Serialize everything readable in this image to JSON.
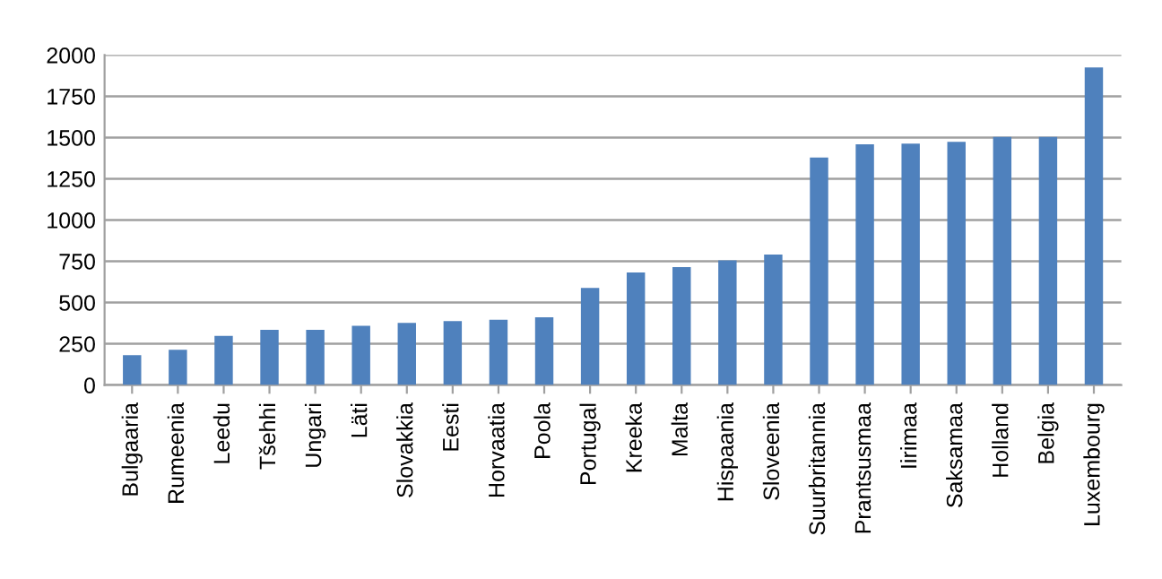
{
  "chart_data": {
    "type": "bar",
    "categories": [
      "Bulgaaria",
      "Rumeenia",
      "Leedu",
      "Tšehhi",
      "Ungari",
      "Läti",
      "Slovakkia",
      "Eesti",
      "Horvaatia",
      "Poola",
      "Portugal",
      "Kreeka",
      "Malta",
      "Hispaania",
      "Sloveenia",
      "Suurbritannia",
      "Prantsusmaa",
      "Iirimaa",
      "Saksamaa",
      "Holland",
      "Belgia",
      "Luxembourg"
    ],
    "values": [
      181,
      214,
      298,
      334,
      334,
      359,
      377,
      388,
      396,
      410,
      588,
      682,
      715,
      755,
      791,
      1379,
      1459,
      1463,
      1474,
      1503,
      1503,
      1924
    ],
    "color": "#4f81bd",
    "ylim": [
      0,
      2000
    ],
    "yticks": [
      0,
      250,
      500,
      750,
      1000,
      1250,
      1500,
      1750,
      2000
    ],
    "grid": "y",
    "legend": false
  }
}
